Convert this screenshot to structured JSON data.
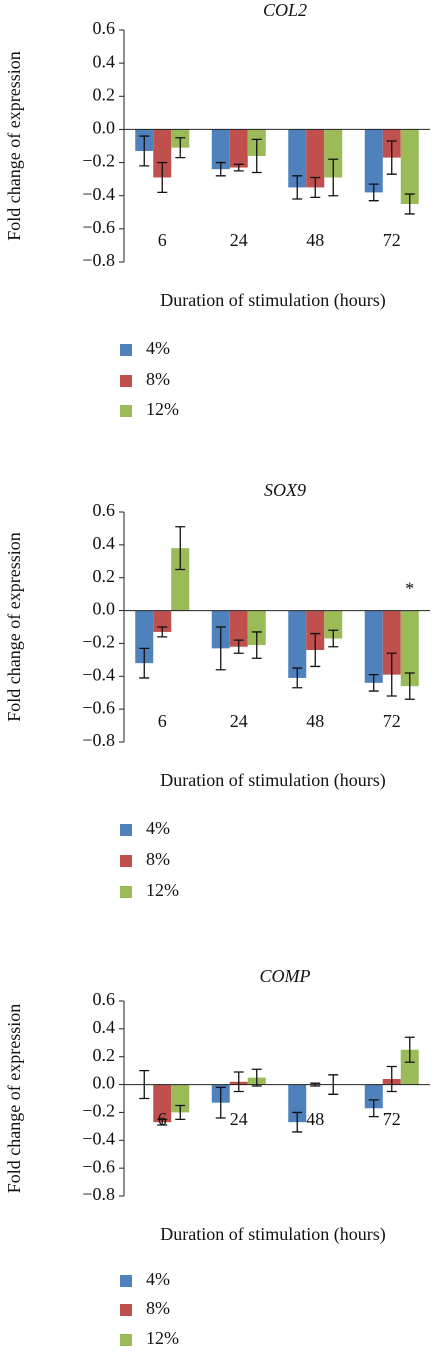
{
  "chart_data": [
    {
      "type": "bar",
      "title": "COL2",
      "x_label": "Duration of stimulation (hours)",
      "y_label": "Fold change of expression",
      "categories": [
        "6",
        "24",
        "48",
        "72"
      ],
      "series": [
        {
          "name": "4%",
          "color": "#4f81bd",
          "values": [
            -0.13,
            -0.24,
            -0.35,
            -0.38
          ],
          "errors": [
            0.09,
            0.04,
            0.07,
            0.05
          ]
        },
        {
          "name": "8%",
          "color": "#c0504d",
          "values": [
            -0.29,
            -0.23,
            -0.35,
            -0.17
          ],
          "errors": [
            0.09,
            0.02,
            0.06,
            0.1
          ]
        },
        {
          "name": "12%",
          "color": "#9bbb59",
          "values": [
            -0.11,
            -0.16,
            -0.29,
            -0.45
          ],
          "errors": [
            0.06,
            0.1,
            0.11,
            0.06
          ]
        }
      ],
      "ylim": [
        -0.8,
        0.6
      ],
      "yticks": [
        0.6,
        0.4,
        0.2,
        {
          "value": 0,
          "label": "0.0"
        },
        {
          "value": -0.2,
          "label": "−0.2"
        },
        {
          "value": -0.4,
          "label": "−0.4"
        },
        {
          "value": -0.6,
          "label": "−0.6"
        },
        {
          "value": -0.8,
          "label": "−0.8"
        }
      ],
      "annotations": []
    },
    {
      "type": "bar",
      "title": "SOX9",
      "x_label": "Duration of stimulation (hours)",
      "y_label": "Fold change of expression",
      "categories": [
        "6",
        "24",
        "48",
        "72"
      ],
      "series": [
        {
          "name": "4%",
          "color": "#4f81bd",
          "values": [
            -0.32,
            -0.23,
            -0.41,
            -0.44
          ],
          "errors": [
            0.09,
            0.13,
            0.06,
            0.05
          ]
        },
        {
          "name": "8%",
          "color": "#c0504d",
          "values": [
            -0.13,
            -0.22,
            -0.24,
            -0.39
          ],
          "errors": [
            0.03,
            0.04,
            0.1,
            0.13
          ]
        },
        {
          "name": "12%",
          "color": "#9bbb59",
          "values": [
            0.38,
            -0.21,
            -0.17,
            -0.46
          ],
          "errors": [
            0.13,
            0.08,
            0.05,
            0.08
          ]
        }
      ],
      "ylim": [
        -0.8,
        0.6
      ],
      "yticks": [
        0.6,
        0.4,
        0.2,
        {
          "value": 0,
          "label": "0.0"
        },
        {
          "value": -0.2,
          "label": "−0.2"
        },
        {
          "value": -0.4,
          "label": "−0.4"
        },
        {
          "value": -0.6,
          "label": "−0.6"
        },
        {
          "value": -0.8,
          "label": "−0.8"
        }
      ],
      "annotations": [
        "*"
      ]
    },
    {
      "type": "bar",
      "title": "COMP",
      "x_label": "Duration of stimulation (hours)",
      "y_label": "Fold change of expression",
      "categories": [
        "6",
        "24",
        "48",
        "72"
      ],
      "series": [
        {
          "name": "4%",
          "color": "#4f81bd",
          "values": [
            0,
            -0.13,
            -0.27,
            -0.17
          ],
          "errors": [
            0.1,
            0.11,
            0.07,
            0.06
          ]
        },
        {
          "name": "8%",
          "color": "#c0504d",
          "values": [
            -0.27,
            0.02,
            0,
            0.04
          ],
          "errors": [
            0.02,
            0.07,
            0.01,
            0.09
          ]
        },
        {
          "name": "12%",
          "color": "#9bbb59",
          "values": [
            -0.2,
            0.05,
            0,
            0.25
          ],
          "errors": [
            0.05,
            0.06,
            0.07,
            0.09
          ]
        }
      ],
      "ylim": [
        -0.8,
        0.6
      ],
      "yticks": [
        0.6,
        0.4,
        0.2,
        {
          "value": 0,
          "label": "0.0"
        },
        {
          "value": -0.2,
          "label": "−0.2"
        },
        {
          "value": -0.4,
          "label": "−0.4"
        },
        {
          "value": -0.6,
          "label": "−0.6"
        },
        {
          "value": -0.8,
          "label": "−0.8"
        }
      ],
      "annotations": []
    }
  ]
}
